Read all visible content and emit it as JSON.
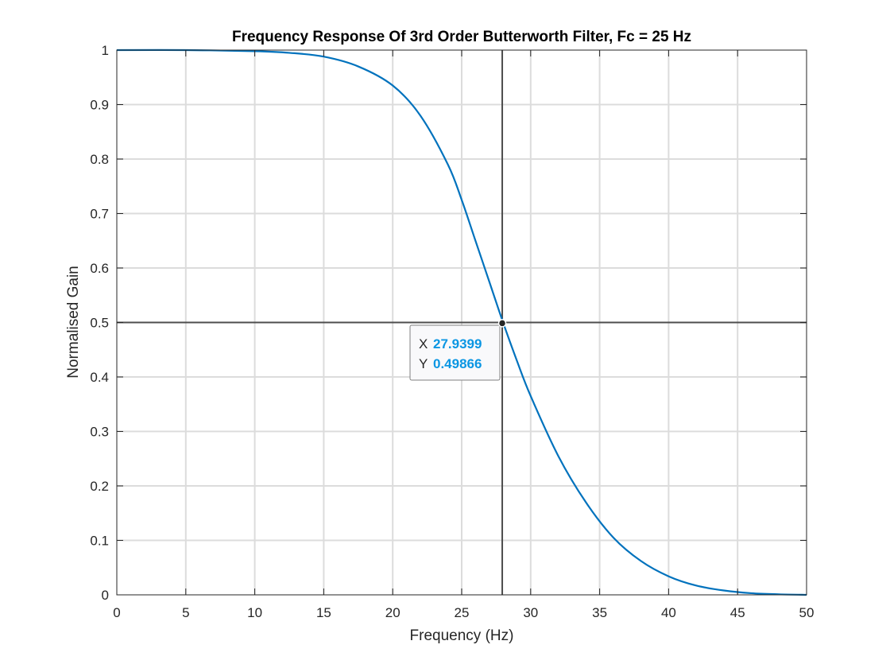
{
  "chart_data": {
    "type": "line",
    "title": "Frequency Response Of 3rd Order Butterworth Filter, Fc = 25 Hz",
    "xlabel": "Frequency (Hz)",
    "ylabel": "Normalised Gain",
    "xlim": [
      0,
      50
    ],
    "ylim": [
      0,
      1
    ],
    "xticks": [
      "0",
      "5",
      "10",
      "15",
      "20",
      "25",
      "30",
      "35",
      "40",
      "45",
      "50"
    ],
    "yticks": [
      "0",
      "0.1",
      "0.2",
      "0.3",
      "0.4",
      "0.5",
      "0.6",
      "0.7",
      "0.8",
      "0.9",
      "1"
    ],
    "grid": true,
    "series": [
      {
        "color": "#0072bd",
        "x": [
          0,
          5,
          10,
          12.5,
          15,
          17.5,
          20,
          22,
          24,
          25,
          26,
          27,
          28,
          29,
          30,
          32,
          34,
          36,
          38,
          40,
          42,
          44,
          46,
          48,
          50
        ],
        "y": [
          1.0,
          1.0,
          0.998,
          0.995,
          0.988,
          0.97,
          0.935,
          0.88,
          0.79,
          0.725,
          0.65,
          0.575,
          0.5,
          0.43,
          0.365,
          0.255,
          0.17,
          0.105,
          0.062,
          0.034,
          0.017,
          0.008,
          0.003,
          0.001,
          0.0
        ]
      }
    ],
    "reference_lines": {
      "x": 27.9399,
      "y": 0.5,
      "color": "#4d4d4d"
    },
    "datatip": {
      "x_label": "X",
      "x_value": "27.9399",
      "y_label": "Y",
      "y_value": "0.49866",
      "point_x": 27.9399,
      "point_y": 0.49866,
      "value_color": "#0b96e3"
    }
  }
}
